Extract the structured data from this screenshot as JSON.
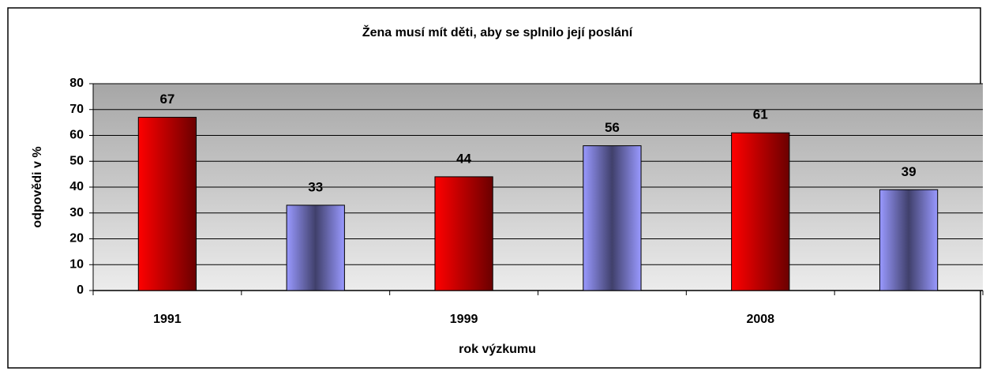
{
  "chart_data": {
    "type": "bar",
    "title": "Žena musí mít děti, aby se splnilo její poslání",
    "x_label": "rok výzkumu",
    "y_label": "odpovědi v %",
    "categories": [
      "1991",
      null,
      "1999",
      null,
      "2008",
      null
    ],
    "values": [
      67,
      33,
      44,
      56,
      61,
      39
    ],
    "colors": [
      "#ff0000",
      "#9999ff",
      "#ff0000",
      "#9999ff",
      "#ff0000",
      "#9999ff"
    ],
    "ylim": [
      0,
      80
    ],
    "yticks": [
      0,
      10,
      20,
      30,
      40,
      50,
      60,
      70,
      80
    ],
    "grid": true
  }
}
